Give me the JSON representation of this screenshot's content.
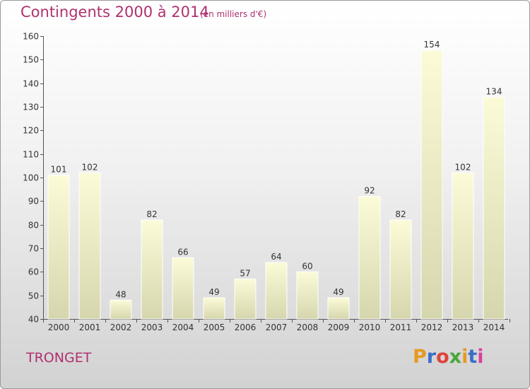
{
  "header": {
    "title": "Contingents 2000 à 2014",
    "subtitle": "(en milliers d'€)"
  },
  "footer": {
    "commune": "TRONGET",
    "brand_letters": [
      "P",
      "r",
      "o",
      "x",
      "i",
      "t",
      "i"
    ],
    "brand_colors": [
      "#e69a1e",
      "#3b6fc4",
      "#e0443a",
      "#4aa63d",
      "#e69a1e",
      "#3b6fc4",
      "#d83fa0"
    ]
  },
  "colors": {
    "text_accent": "#b03070",
    "bar_top": "#fbfbd8",
    "bar_bottom": "#d6d6ae",
    "axis": "#555555",
    "label": "#333333"
  },
  "chart_data": {
    "type": "bar",
    "categories": [
      "2000",
      "2001",
      "2002",
      "2003",
      "2004",
      "2005",
      "2006",
      "2007",
      "2008",
      "2009",
      "2010",
      "2011",
      "2012",
      "2013",
      "2014"
    ],
    "values": [
      101,
      102,
      48,
      82,
      66,
      49,
      57,
      64,
      60,
      49,
      92,
      82,
      154,
      102,
      134
    ],
    "ylim": [
      40,
      160
    ],
    "yticks": [
      40,
      50,
      60,
      70,
      80,
      90,
      100,
      110,
      120,
      130,
      140,
      150,
      160
    ],
    "data_labels": true,
    "grid": false
  }
}
